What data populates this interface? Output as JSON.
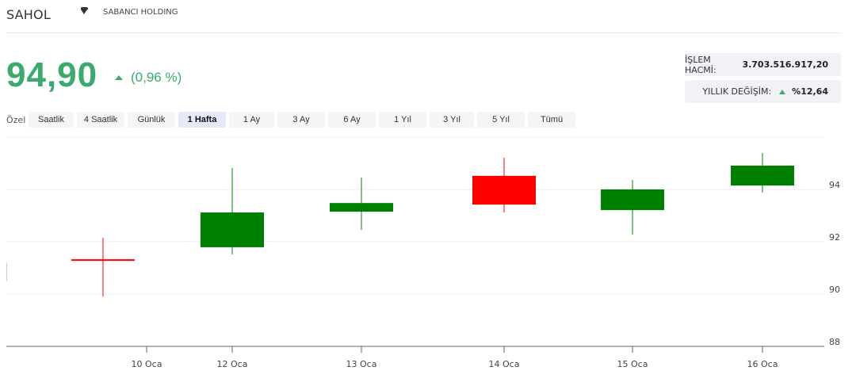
{
  "header": {
    "symbol": "SAHOL",
    "company": "SABANCI HOLDING"
  },
  "quote": {
    "price": "94,90",
    "change": "(0,96 %)",
    "direction": "up"
  },
  "stats": {
    "volume_label": "İŞLEM HACMİ:",
    "volume_value": "3.703.516.917,20",
    "yearly_label": "YILLIK DEĞİŞİM:",
    "yearly_value": "%12,64"
  },
  "ranges": {
    "custom_label": "Özel",
    "items": [
      "Saatlik",
      "4 Saatlik",
      "Günlük",
      "1 Hafta",
      "1 Ay",
      "3 Ay",
      "6 Ay",
      "1 Yıl",
      "3 Yıl",
      "5 Yıl",
      "Tümü"
    ],
    "active": "1 Hafta"
  },
  "colors": {
    "up": "#008000",
    "down": "#ff0000",
    "accent": "#3aaa6e",
    "active_range_bg": "#e6e9f8"
  },
  "chart_data": {
    "type": "candlestick",
    "x_tick_labels": [
      "10 Oca",
      "12 Oca",
      "13 Oca",
      "14 Oca",
      "15 Oca",
      "16 Oca"
    ],
    "y_ticks": [
      88,
      90,
      92,
      94
    ],
    "ylim": [
      88,
      96
    ],
    "grid": true,
    "candles": [
      {
        "open": 91.33,
        "high": 92.15,
        "low": 89.9,
        "close": 91.33,
        "color": "down"
      },
      {
        "open": 91.79,
        "high": 94.82,
        "low": 91.52,
        "close": 93.12,
        "color": "up"
      },
      {
        "open": 93.15,
        "high": 94.45,
        "low": 92.45,
        "close": 93.48,
        "color": "up"
      },
      {
        "open": 94.52,
        "high": 95.21,
        "low": 93.12,
        "close": 93.42,
        "color": "down"
      },
      {
        "open": 93.21,
        "high": 94.36,
        "low": 92.27,
        "close": 94.0,
        "color": "up"
      },
      {
        "open": 94.15,
        "high": 95.39,
        "low": 93.88,
        "close": 94.91,
        "color": "up"
      }
    ]
  }
}
